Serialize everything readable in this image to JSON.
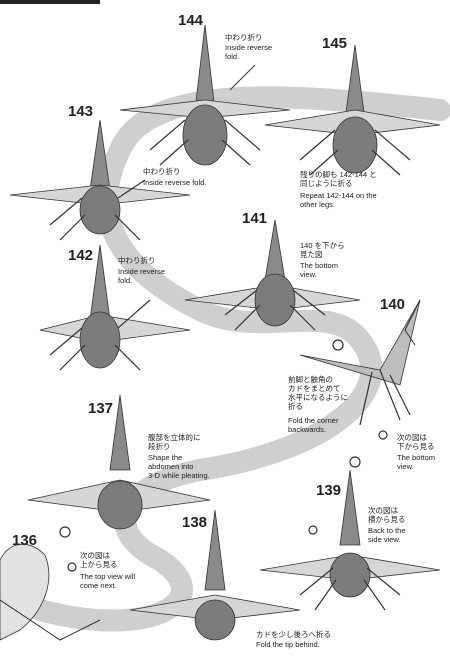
{
  "steps": [
    {
      "id": "144",
      "number": "144",
      "jp": "中わり折り",
      "en": "Inside reverse\nfold."
    },
    {
      "id": "145",
      "number": "145",
      "jp": "残りの脚も 142-144 と\n同じように折る",
      "en": "Repeat 142-144 on the\nother legs."
    },
    {
      "id": "143",
      "number": "143",
      "jp": "中わり折り",
      "en": "Inside reverse fold."
    },
    {
      "id": "141",
      "number": "141",
      "jp": "140 を下から\n見た図",
      "en": "The bottom\nview."
    },
    {
      "id": "142",
      "number": "142",
      "jp": "中わり折り",
      "en": "Inside reverse\nfold."
    },
    {
      "id": "140",
      "number": "140",
      "jp": "前脚と触角の\nカドをまとめて\n水平になるように\n折る",
      "en": "Fold the corner\nbackwards.",
      "view_jp": "次の図は\n下から見る",
      "view_en": "The bottom\nview."
    },
    {
      "id": "137",
      "number": "137",
      "jp": "腹部を立体的に\n段折り",
      "en": "Shape the\nabdomen into\n3-D while pleating."
    },
    {
      "id": "139",
      "number": "139",
      "jp": "次の図は\n横から見る",
      "en": "Back to the\nside view."
    },
    {
      "id": "138",
      "number": "138",
      "jp": "カドを少し後ろへ折る",
      "en": "Fold the tip behind."
    },
    {
      "id": "136",
      "number": "136",
      "jp": "次の図は\n上から見る",
      "en": "The top view will\ncome next."
    }
  ]
}
